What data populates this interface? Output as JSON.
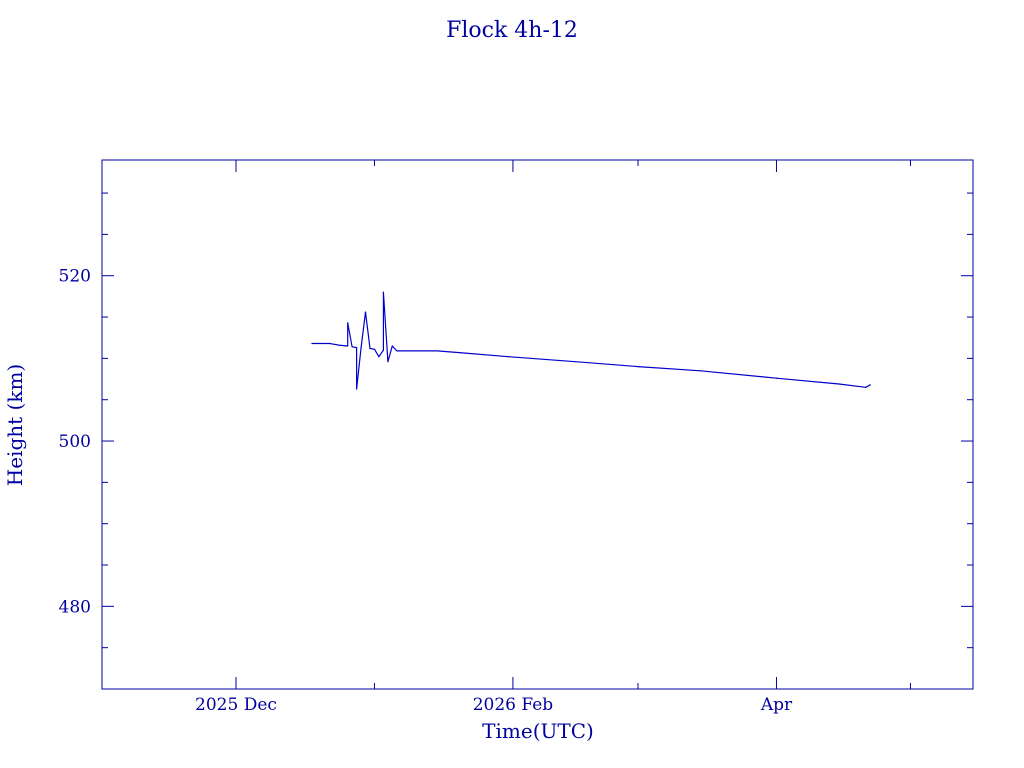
{
  "chart_data": {
    "type": "line",
    "title": "Flock 4h-12",
    "xlabel": "Time(UTC)",
    "ylabel": "Height (km)",
    "color": "#0000cc",
    "axis_color": "#0000a0",
    "background": "#ffffff",
    "grid": false,
    "x_axis_type": "date",
    "xlim": [
      "2025-11-01",
      "2026-05-15"
    ],
    "ylim": [
      470,
      534
    ],
    "x_major_ticks": [
      {
        "date": "2025-12-01",
        "label": "2025 Dec"
      },
      {
        "date": "2026-02-01",
        "label": "2026 Feb"
      },
      {
        "date": "2026-04-01",
        "label": "Apr"
      }
    ],
    "x_minor_ticks": [
      "2025-11-01",
      "2025-12-01",
      "2026-01-01",
      "2026-02-01",
      "2026-03-01",
      "2026-04-01",
      "2026-05-01"
    ],
    "y_major_ticks": [
      480,
      500,
      520
    ],
    "y_minor_step": 5,
    "series": [
      {
        "points": [
          [
            "2025-12-18",
            511.8
          ],
          [
            "2025-12-22",
            511.8
          ],
          [
            "2025-12-23",
            511.7
          ],
          [
            "2025-12-24",
            511.6
          ],
          [
            "2025-12-26",
            511.5
          ],
          [
            "2025-12-26",
            514.3
          ],
          [
            "2025-12-27",
            511.4
          ],
          [
            "2025-12-28",
            511.3
          ],
          [
            "2025-12-28",
            506.3
          ],
          [
            "2025-12-29",
            511.3
          ],
          [
            "2025-12-30",
            515.6
          ],
          [
            "2025-12-31",
            511.2
          ],
          [
            "2026-01-01",
            511.1
          ],
          [
            "2026-01-02",
            510.2
          ],
          [
            "2026-01-03",
            511.0
          ],
          [
            "2026-01-03",
            518.0
          ],
          [
            "2026-01-04",
            509.6
          ],
          [
            "2026-01-05",
            511.5
          ],
          [
            "2026-01-06",
            510.9
          ],
          [
            "2026-01-15",
            510.9
          ],
          [
            "2026-01-20",
            510.7
          ],
          [
            "2026-01-31",
            510.2
          ],
          [
            "2026-02-15",
            509.6
          ],
          [
            "2026-03-01",
            509.0
          ],
          [
            "2026-03-15",
            508.5
          ],
          [
            "2026-04-01",
            507.6
          ],
          [
            "2026-04-15",
            506.9
          ],
          [
            "2026-04-21",
            506.5
          ],
          [
            "2026-04-22",
            506.8
          ]
        ]
      }
    ]
  }
}
